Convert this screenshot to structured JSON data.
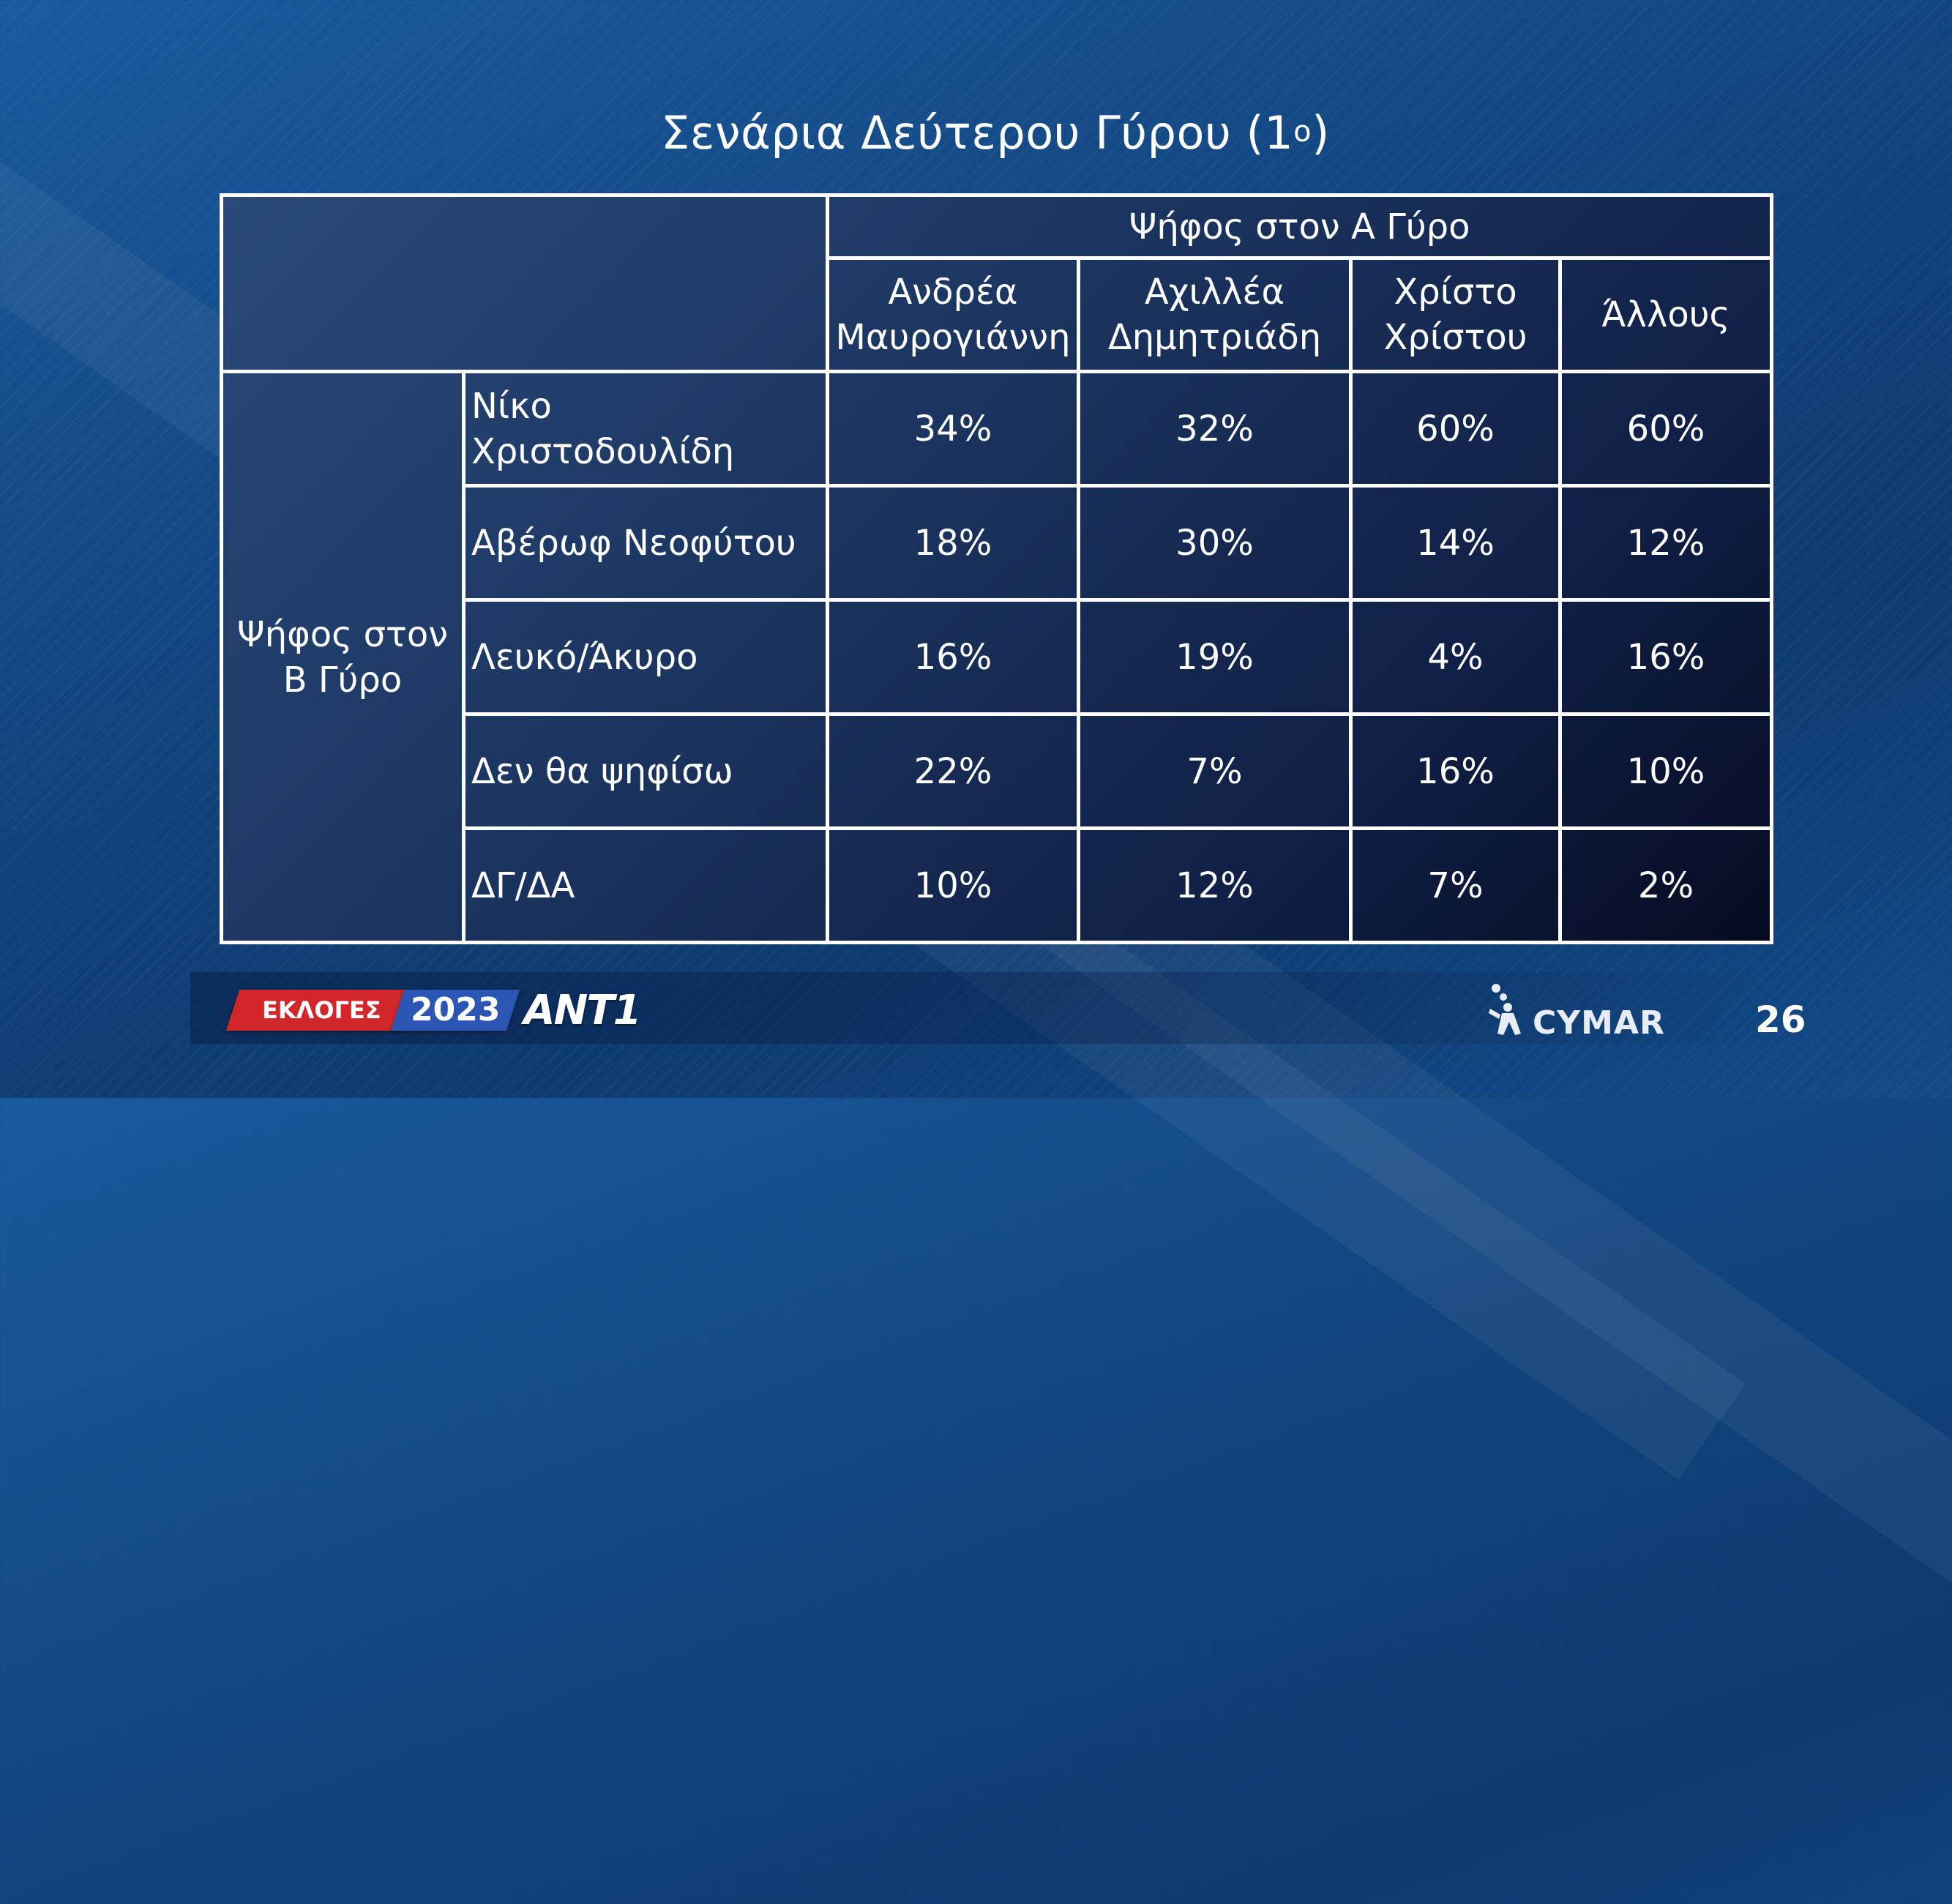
{
  "title": "Σενάρια Δεύτερου Γύρου (1",
  "title_sup": "ο",
  "title_close": ")",
  "table": {
    "group_header": "Ψήφος στον Α Γύρο",
    "columns": [
      [
        "Ανδρέα",
        "Μαυρογιάννη"
      ],
      [
        "Αχιλλέα",
        "Δημητριάδη"
      ],
      [
        "Χρίστο",
        "Χρίστου"
      ],
      [
        "Άλλους"
      ]
    ],
    "row_group_label": [
      "Ψήφος στον",
      "Β Γύρο"
    ],
    "rows": [
      {
        "label": "Νίκο Χριστοδουλίδη",
        "values": [
          "34%",
          "32%",
          "60%",
          "60%"
        ]
      },
      {
        "label": "Αβέρωφ Νεοφύτου",
        "values": [
          "18%",
          "30%",
          "14%",
          "12%"
        ]
      },
      {
        "label": "Λευκό/Άκυρο",
        "values": [
          "16%",
          "19%",
          "4%",
          "16%"
        ]
      },
      {
        "label": "Δεν θα ψηφίσω",
        "values": [
          "22%",
          "7%",
          "16%",
          "10%"
        ]
      },
      {
        "label": "ΔΓ/ΔΑ",
        "values": [
          "10%",
          "12%",
          "7%",
          "2%"
        ]
      }
    ]
  },
  "footer": {
    "elections_label": "ΕΚΛΟΓΕΣ",
    "year": "2023",
    "channel": "ANT1",
    "pollster": "CYMAR",
    "page_number": "26"
  },
  "colors": {
    "background": "#12457f",
    "logo_red": "#d3262b",
    "logo_blue": "#2b56b3"
  }
}
